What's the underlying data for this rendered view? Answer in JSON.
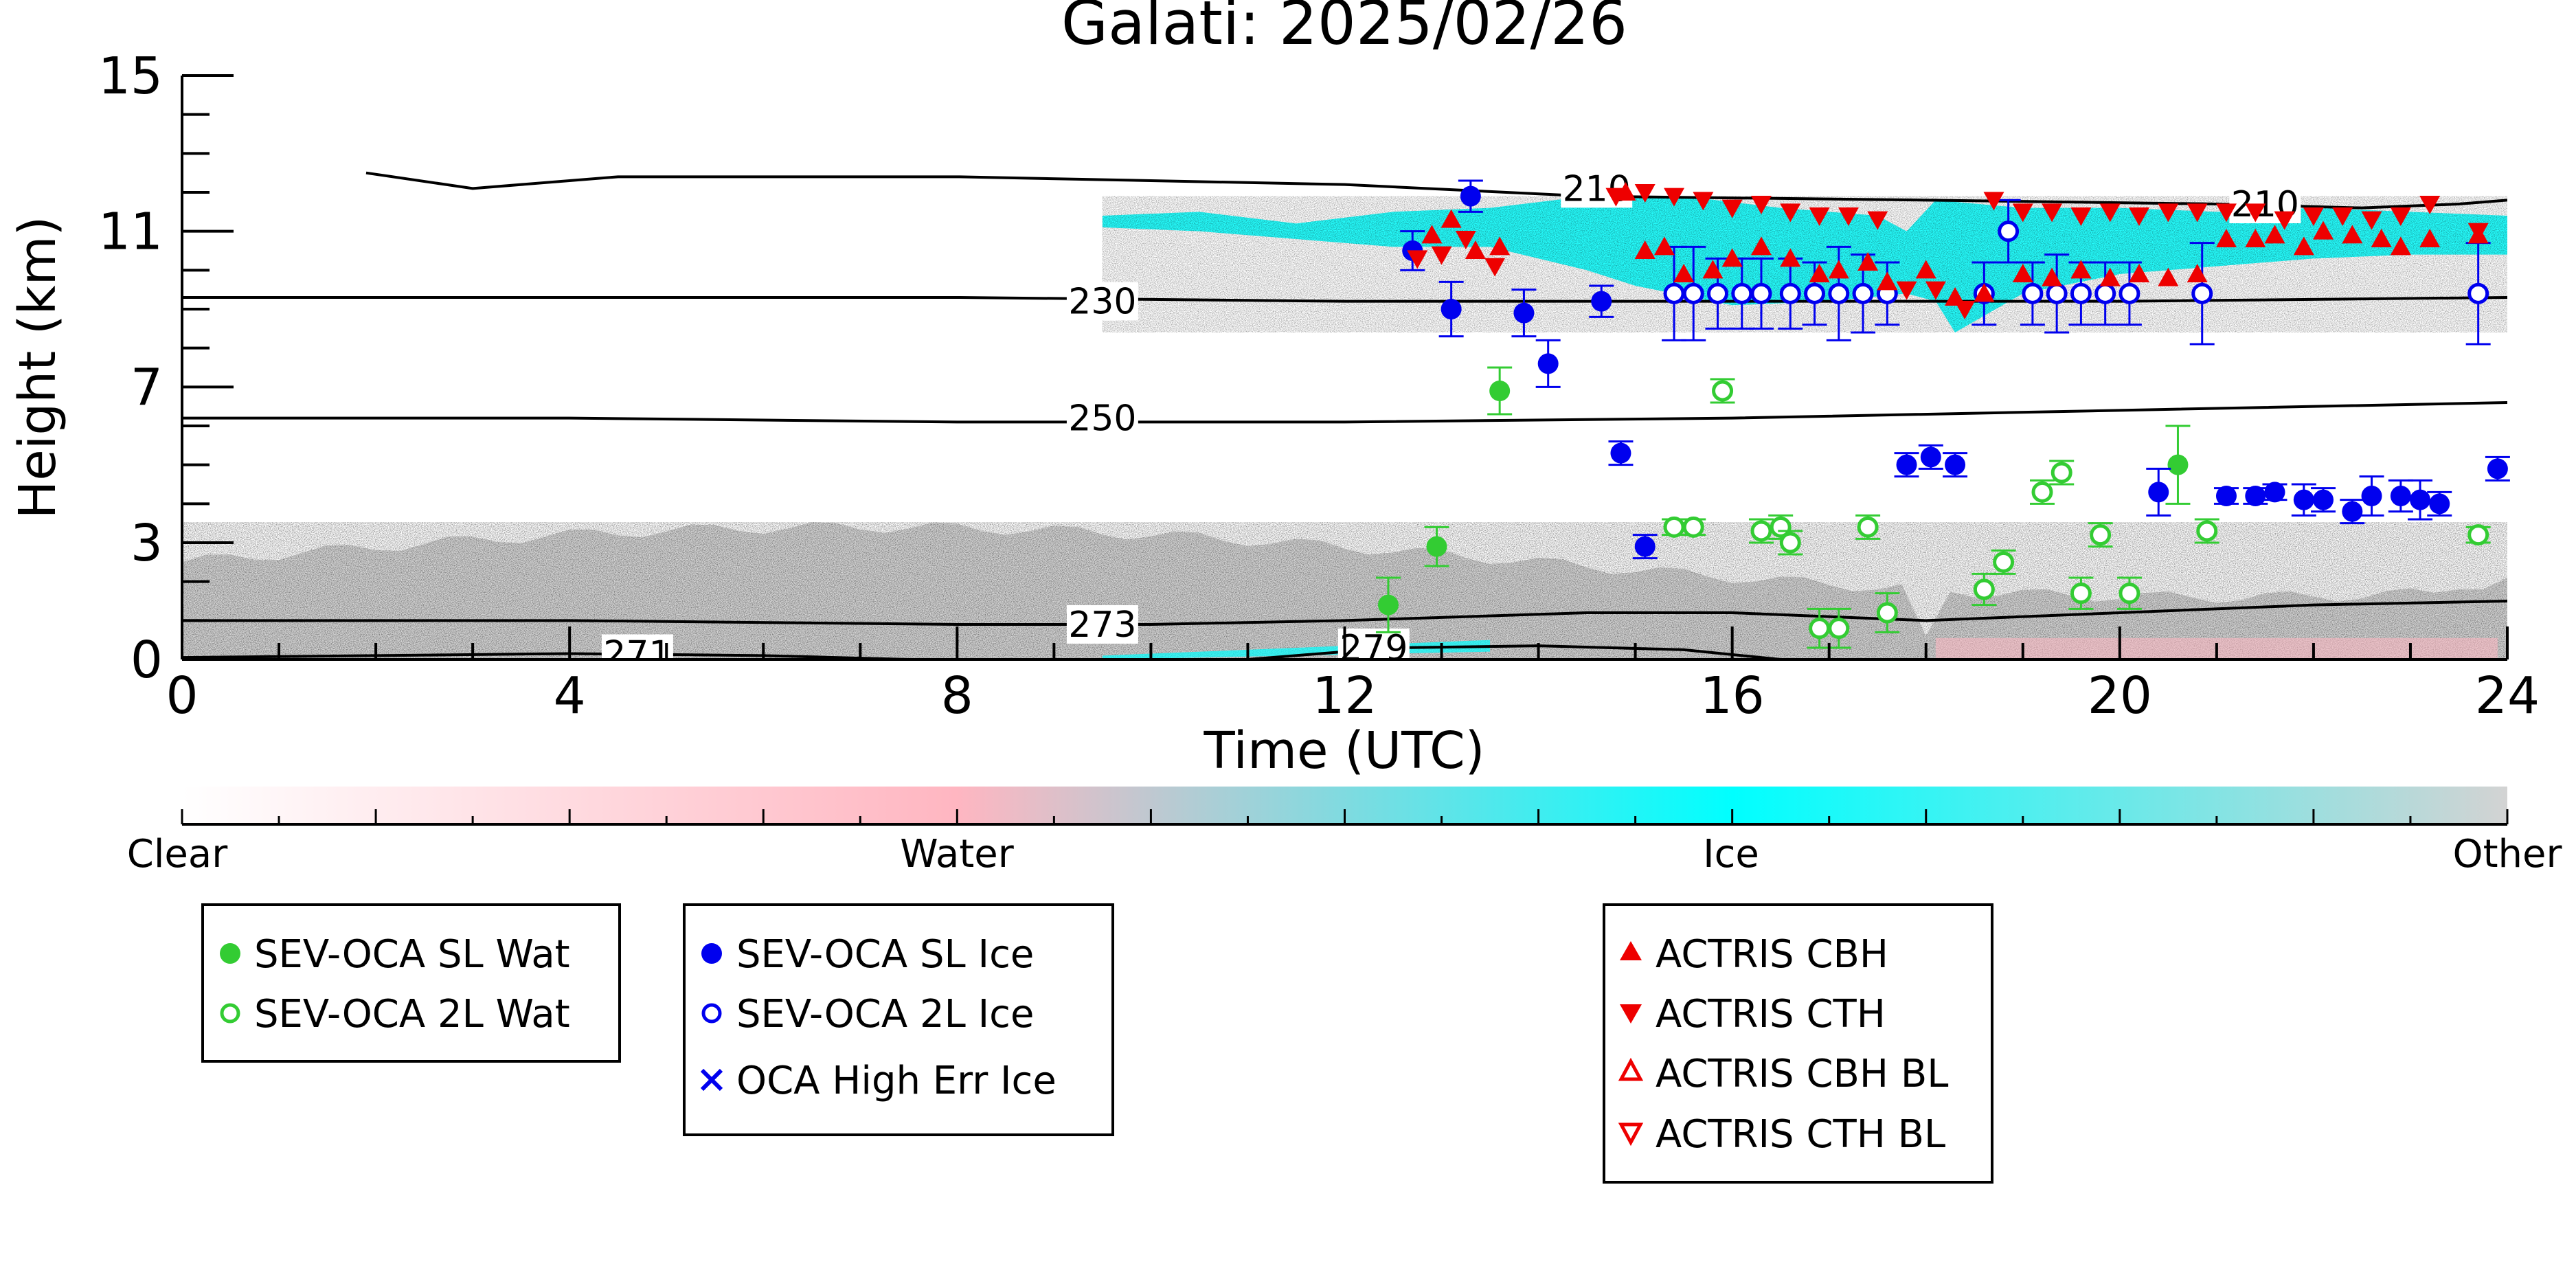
{
  "chart_data": {
    "type": "scatter",
    "title": "Galati: 2025/02/26",
    "xlabel": "Time (UTC)",
    "ylabel": "Height (km)",
    "xlim": [
      0,
      24
    ],
    "ylim": [
      0,
      15
    ],
    "x_ticks": [
      "0",
      "4",
      "8",
      "12",
      "16",
      "20",
      "24"
    ],
    "y_ticks": [
      "0",
      "3",
      "7",
      "11",
      "15"
    ],
    "colorbar": {
      "labels": [
        "Clear",
        "Water",
        "Ice",
        "Other"
      ],
      "colors": [
        "#ffffff",
        "#ffb6c1",
        "#00ffff",
        "#d3d3d3"
      ]
    },
    "contours": [
      {
        "label": "210",
        "points": [
          [
            1.9,
            12.5
          ],
          [
            3.0,
            12.1
          ],
          [
            4.5,
            12.4
          ],
          [
            8.0,
            12.4
          ],
          [
            12.0,
            12.2
          ],
          [
            14.5,
            11.9
          ],
          [
            18.0,
            11.8
          ],
          [
            21.0,
            11.7
          ],
          [
            22.5,
            11.6
          ],
          [
            23.5,
            11.7
          ],
          [
            24.0,
            11.8
          ]
        ],
        "label_at": [
          [
            14.6,
            12.1
          ],
          [
            21.5,
            11.7
          ]
        ]
      },
      {
        "label": "230",
        "points": [
          [
            0,
            9.3
          ],
          [
            8,
            9.3
          ],
          [
            12,
            9.2
          ],
          [
            16,
            9.2
          ],
          [
            20,
            9.2
          ],
          [
            24,
            9.3
          ]
        ],
        "label_at": [
          [
            9.5,
            9.2
          ]
        ]
      },
      {
        "label": "250",
        "points": [
          [
            0,
            6.2
          ],
          [
            4,
            6.2
          ],
          [
            8,
            6.1
          ],
          [
            12,
            6.1
          ],
          [
            16,
            6.2
          ],
          [
            20,
            6.4
          ],
          [
            24,
            6.6
          ]
        ],
        "label_at": [
          [
            9.5,
            6.2
          ]
        ]
      },
      {
        "label": "273",
        "points": [
          [
            0,
            1.0
          ],
          [
            4,
            1.0
          ],
          [
            8,
            0.9
          ],
          [
            10,
            0.9
          ],
          [
            12,
            1.0
          ],
          [
            14.5,
            1.2
          ],
          [
            16,
            1.2
          ],
          [
            18,
            1.0
          ],
          [
            20,
            1.2
          ],
          [
            22,
            1.4
          ],
          [
            24,
            1.5
          ]
        ],
        "label_at": [
          [
            9.5,
            0.9
          ]
        ]
      },
      {
        "label": "271",
        "points": [
          [
            0,
            0.05
          ],
          [
            2,
            0.1
          ],
          [
            4,
            0.15
          ],
          [
            6,
            0.1
          ],
          [
            7.5,
            0.0
          ]
        ],
        "label_at": [
          [
            4.7,
            0.15
          ]
        ]
      },
      {
        "label": "279",
        "points": [
          [
            11.0,
            0.0
          ],
          [
            12.5,
            0.3
          ],
          [
            14.0,
            0.35
          ],
          [
            15.5,
            0.25
          ],
          [
            16.5,
            0.0
          ]
        ],
        "label_at": [
          [
            12.3,
            0.3
          ]
        ]
      }
    ],
    "series": [
      {
        "name": "SEV-OCA SL Wat",
        "marker": "filled-circle",
        "color": "#33cc33",
        "x": [
          12.45,
          12.95,
          13.6,
          20.6
        ],
        "y": [
          1.4,
          2.9,
          6.9,
          5.0
        ],
        "err": [
          0.7,
          0.5,
          0.6,
          1.0
        ]
      },
      {
        "name": "SEV-OCA 2L Wat",
        "marker": "open-circle",
        "color": "#33cc33",
        "x": [
          15.4,
          15.6,
          15.9,
          16.3,
          16.5,
          16.6,
          16.9,
          17.1,
          17.4,
          17.6,
          18.6,
          18.8,
          19.2,
          19.4,
          19.6,
          19.8,
          20.1,
          20.9,
          23.7
        ],
        "y": [
          3.4,
          3.4,
          6.9,
          3.3,
          3.4,
          3.0,
          0.8,
          0.8,
          3.4,
          1.2,
          1.8,
          2.5,
          4.3,
          4.8,
          1.7,
          3.2,
          1.7,
          3.3,
          3.2
        ],
        "err": [
          0.2,
          0.2,
          0.3,
          0.3,
          0.3,
          0.3,
          0.5,
          0.5,
          0.3,
          0.5,
          0.4,
          0.3,
          0.3,
          0.3,
          0.4,
          0.3,
          0.4,
          0.3,
          0.2
        ]
      },
      {
        "name": "SEV-OCA SL Ice",
        "marker": "filled-circle",
        "color": "#0000ee",
        "x": [
          12.7,
          13.3,
          13.1,
          13.85,
          14.1,
          14.65,
          14.85,
          15.1,
          17.8,
          18.05,
          18.3,
          20.4,
          21.1,
          21.4,
          21.6,
          21.9,
          22.1,
          22.4,
          22.6,
          22.9,
          23.1,
          23.3,
          23.9
        ],
        "y": [
          10.5,
          11.9,
          9.0,
          8.9,
          7.6,
          9.2,
          5.3,
          2.9,
          5.0,
          5.2,
          5.0,
          4.3,
          4.2,
          4.2,
          4.3,
          4.1,
          4.1,
          3.8,
          4.2,
          4.2,
          4.1,
          4.0,
          4.9
        ],
        "err": [
          0.5,
          0.4,
          0.7,
          0.6,
          0.6,
          0.4,
          0.3,
          0.3,
          0.3,
          0.3,
          0.3,
          0.6,
          0.2,
          0.2,
          0.2,
          0.4,
          0.3,
          0.3,
          0.5,
          0.4,
          0.5,
          0.3,
          0.3
        ]
      },
      {
        "name": "SEV-OCA 2L Ice",
        "marker": "open-circle",
        "color": "#0000ee",
        "x": [
          15.4,
          15.6,
          15.85,
          16.1,
          16.3,
          16.6,
          16.85,
          17.1,
          17.35,
          17.6,
          18.6,
          18.85,
          19.1,
          19.35,
          19.6,
          19.85,
          20.1,
          20.85,
          23.7
        ],
        "y": [
          9.4,
          9.4,
          9.4,
          9.4,
          9.4,
          9.4,
          9.4,
          9.4,
          9.4,
          9.4,
          9.4,
          11.0,
          9.4,
          9.4,
          9.4,
          9.4,
          9.4,
          9.4,
          9.4
        ],
        "err": [
          1.2,
          1.2,
          0.9,
          0.9,
          0.9,
          0.9,
          0.8,
          1.2,
          1.0,
          0.8,
          0.8,
          0.8,
          0.8,
          1.0,
          0.8,
          0.8,
          0.8,
          1.3,
          1.3
        ]
      },
      {
        "name": "OCA High Err Ice",
        "marker": "cross",
        "color": "#0000ee",
        "x": [],
        "y": []
      },
      {
        "name": "ACTRIS CBH",
        "marker": "triangle-up",
        "color": "#ee0000",
        "x": [
          12.9,
          13.1,
          13.35,
          13.6,
          14.9,
          15.1,
          15.3,
          15.5,
          15.8,
          16.0,
          16.3,
          16.6,
          16.9,
          17.1,
          17.4,
          17.6,
          18.0,
          18.3,
          18.6,
          19.0,
          19.3,
          19.6,
          19.9,
          20.2,
          20.5,
          20.8,
          21.1,
          21.4,
          21.6,
          21.9,
          22.1,
          22.4,
          22.7,
          22.9,
          23.2,
          23.7
        ],
        "y": [
          10.9,
          11.3,
          10.5,
          10.6,
          12.0,
          10.5,
          10.6,
          9.9,
          10.0,
          10.3,
          10.6,
          10.3,
          9.9,
          10.0,
          10.2,
          9.7,
          10.0,
          9.3,
          9.4,
          9.9,
          9.8,
          10.0,
          9.8,
          9.9,
          9.8,
          9.9,
          10.8,
          10.8,
          10.9,
          10.6,
          11.0,
          10.9,
          10.8,
          10.6,
          10.8,
          10.9
        ],
        "err": []
      },
      {
        "name": "ACTRIS CTH",
        "marker": "triangle-down",
        "color": "#ee0000",
        "x": [
          12.75,
          13.0,
          13.25,
          13.55,
          14.8,
          15.1,
          15.4,
          15.7,
          16.0,
          16.3,
          16.6,
          16.9,
          17.2,
          17.5,
          17.8,
          18.1,
          18.4,
          18.7,
          19.0,
          19.3,
          19.6,
          19.9,
          20.2,
          20.5,
          20.8,
          21.1,
          21.4,
          21.7,
          22.0,
          22.3,
          22.6,
          22.9,
          23.2,
          23.7
        ],
        "y": [
          10.3,
          10.4,
          10.8,
          10.1,
          11.9,
          12.0,
          11.9,
          11.8,
          11.6,
          11.7,
          11.5,
          11.4,
          11.4,
          11.3,
          9.5,
          9.5,
          9.0,
          11.8,
          11.5,
          11.5,
          11.4,
          11.5,
          11.4,
          11.5,
          11.5,
          11.5,
          11.5,
          11.3,
          11.4,
          11.4,
          11.3,
          11.4,
          11.7,
          11.0
        ],
        "err": []
      },
      {
        "name": "ACTRIS CBH BL",
        "marker": "open-triangle-up",
        "color": "#ee0000",
        "x": [],
        "y": []
      },
      {
        "name": "ACTRIS CTH BL",
        "marker": "open-triangle-down",
        "color": "#ee0000",
        "x": [],
        "y": []
      }
    ],
    "classification_fields": [
      {
        "class": "Other",
        "color": "#d3d3d3",
        "from_x": 0,
        "to_x": 24,
        "top_y_start": 2.5,
        "top_y_peak": 3.6,
        "note_gap": [
          17.75,
          18.05
        ]
      },
      {
        "class": "Ice",
        "color": "#00ffff",
        "from_x": 9.5,
        "to_x": 24,
        "band": [
          9.5,
          11.6
        ]
      },
      {
        "class": "Water",
        "color": "#ffb6c1",
        "from_x": 18.0,
        "to_x": 24,
        "band": [
          0,
          0.6
        ]
      }
    ],
    "legends": [
      {
        "items": [
          "SEV-OCA SL Wat",
          "SEV-OCA 2L Wat"
        ]
      },
      {
        "items": [
          "SEV-OCA SL Ice",
          "SEV-OCA 2L Ice",
          "OCA High Err Ice"
        ]
      },
      {
        "items": [
          "ACTRIS CBH",
          "ACTRIS CTH",
          "ACTRIS CBH BL",
          "ACTRIS CTH BL"
        ]
      }
    ]
  }
}
